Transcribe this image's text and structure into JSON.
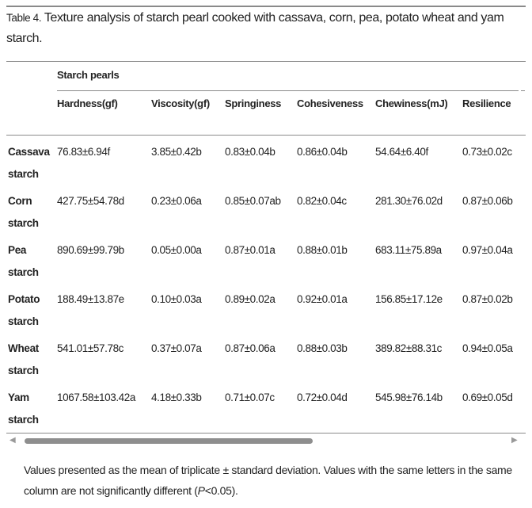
{
  "caption": {
    "label": "Table 4.",
    "text": " Texture analysis of starch pearl cooked with cassava, corn, pea, potato wheat and yam starch."
  },
  "table": {
    "group_header": "Starch pearls",
    "columns": [
      "Hardness(gf)",
      "Viscosity(gf)",
      "Springiness",
      "Cohesiveness",
      "Chewiness(mJ)",
      "Resilience"
    ],
    "rows": [
      {
        "name": [
          "Cassava",
          "starch"
        ],
        "values": [
          "76.83±6.94f",
          "3.85±0.42b",
          "0.83±0.04b",
          "0.86±0.04b",
          "54.64±6.40f",
          "0.73±0.02c"
        ]
      },
      {
        "name": [
          "Corn",
          "starch"
        ],
        "values": [
          "427.75±54.78d",
          "0.23±0.06a",
          "0.85±0.07ab",
          "0.82±0.04c",
          "281.30±76.02d",
          "0.87±0.06b"
        ]
      },
      {
        "name": [
          "Pea",
          "starch"
        ],
        "values": [
          "890.69±99.79b",
          "0.05±0.00a",
          "0.87±0.01a",
          "0.88±0.01b",
          "683.11±75.89a",
          "0.97±0.04a"
        ]
      },
      {
        "name": [
          "Potato",
          "starch"
        ],
        "values": [
          "188.49±13.87e",
          "0.10±0.03a",
          "0.89±0.02a",
          "0.92±0.01a",
          "156.85±17.12e",
          "0.87±0.02b"
        ]
      },
      {
        "name": [
          "Wheat",
          "starch"
        ],
        "values": [
          "541.01±57.78c",
          "0.37±0.07a",
          "0.87±0.06a",
          "0.88±0.03b",
          "389.82±88.31c",
          "0.94±0.05a"
        ]
      },
      {
        "name": [
          "Yam",
          "starch"
        ],
        "values": [
          "1067.58±103.42a",
          "4.18±0.33b",
          "0.71±0.07c",
          "0.72±0.04d",
          "545.98±76.14b",
          "0.69±0.05d"
        ]
      }
    ]
  },
  "scrollbar": {
    "position_fraction": 0,
    "visible_fraction": 0.56
  },
  "footnote": {
    "before": "Values presented as the mean of triplicate ± standard deviation. Values with the same letters in the same column are not significantly different (",
    "italic": "P",
    "after": "<0.05)."
  }
}
